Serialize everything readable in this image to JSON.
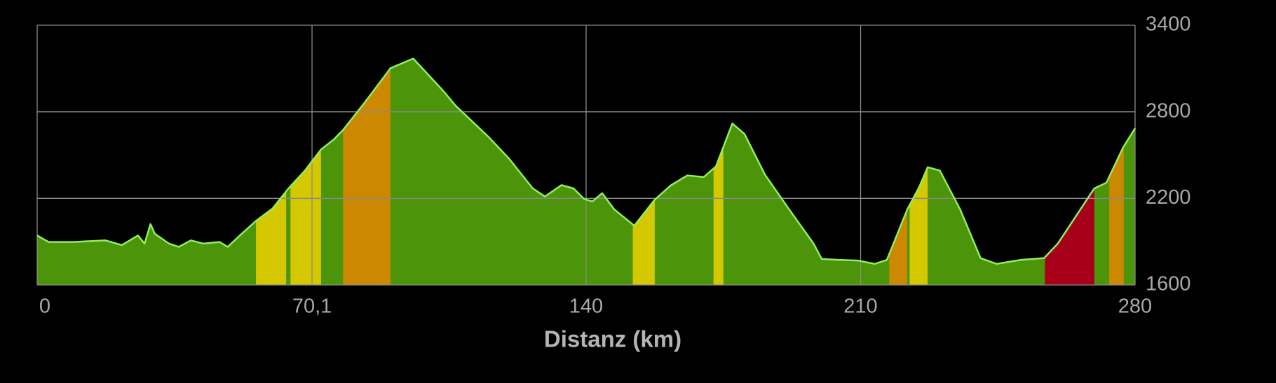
{
  "chart_data": {
    "type": "area",
    "x_label": "Distanz (km)",
    "xlim": [
      0,
      280
    ],
    "ylim": [
      1600,
      3400
    ],
    "xticks": [
      0,
      {
        "value": 70.1,
        "label": "70,1"
      },
      140,
      210,
      280
    ],
    "yticks": [
      1600,
      2200,
      2800,
      3400
    ],
    "grid": true,
    "color": "#4c9409",
    "line_color": "#8ef060",
    "x": [
      0,
      2.9,
      9.1,
      17.4,
      21.6,
      25.7,
      27.4,
      28.9,
      30,
      33.6,
      36.1,
      39.2,
      42.3,
      46.5,
      48.6,
      51.7,
      55.8,
      60,
      64.1,
      68.3,
      72.4,
      75.6,
      78,
      83.9,
      90.1,
      95.9,
      98.4,
      103.6,
      106.7,
      115,
      120.3,
      126.4,
      129.5,
      133.7,
      136.8,
      139.5,
      141.6,
      144.1,
      147.2,
      152.3,
      157.5,
      161.7,
      165.8,
      170,
      173.1,
      177.3,
      180.4,
      185.6,
      191.8,
      198,
      200.1,
      204.3,
      209.4,
      213.6,
      216.7,
      221.9,
      225,
      227.1,
      230.2,
      235.4,
      240.6,
      244.7,
      250.9,
      256.8,
      260.3,
      269.6,
      272.7,
      276.9,
      280
    ],
    "values": [
      1943,
      1898,
      1898,
      1909,
      1876,
      1943,
      1887,
      2022,
      1955,
      1887,
      1864,
      1909,
      1887,
      1898,
      1864,
      1943,
      2044,
      2129,
      2269,
      2393,
      2539,
      2607,
      2674,
      2877,
      3102,
      3169,
      3096,
      2944,
      2843,
      2629,
      2477,
      2269,
      2213,
      2292,
      2269,
      2196,
      2179,
      2236,
      2123,
      2011,
      2191,
      2292,
      2359,
      2348,
      2421,
      2719,
      2646,
      2365,
      2123,
      1887,
      1780,
      1774,
      1769,
      1746,
      1774,
      2123,
      2281,
      2416,
      2393,
      2123,
      1786,
      1746,
      1774,
      1786,
      1887,
      2269,
      2309,
      2551,
      2686
    ],
    "segments": [
      {
        "start": 55.8,
        "end": 63.5,
        "color": "#d4c800"
      },
      {
        "start": 64.6,
        "end": 72.4,
        "color": "#d4c800"
      },
      {
        "start": 78,
        "end": 90.1,
        "color": "#cc8800"
      },
      {
        "start": 151.9,
        "end": 157.5,
        "color": "#d4c800"
      },
      {
        "start": 172.5,
        "end": 175,
        "color": "#d4c800"
      },
      {
        "start": 217.3,
        "end": 221.9,
        "color": "#cc8800"
      },
      {
        "start": 222.5,
        "end": 227.1,
        "color": "#d4c800"
      },
      {
        "start": 257,
        "end": 269.6,
        "color": "#a8001a"
      },
      {
        "start": 273.4,
        "end": 277.1,
        "color": "#cc8800"
      }
    ]
  }
}
